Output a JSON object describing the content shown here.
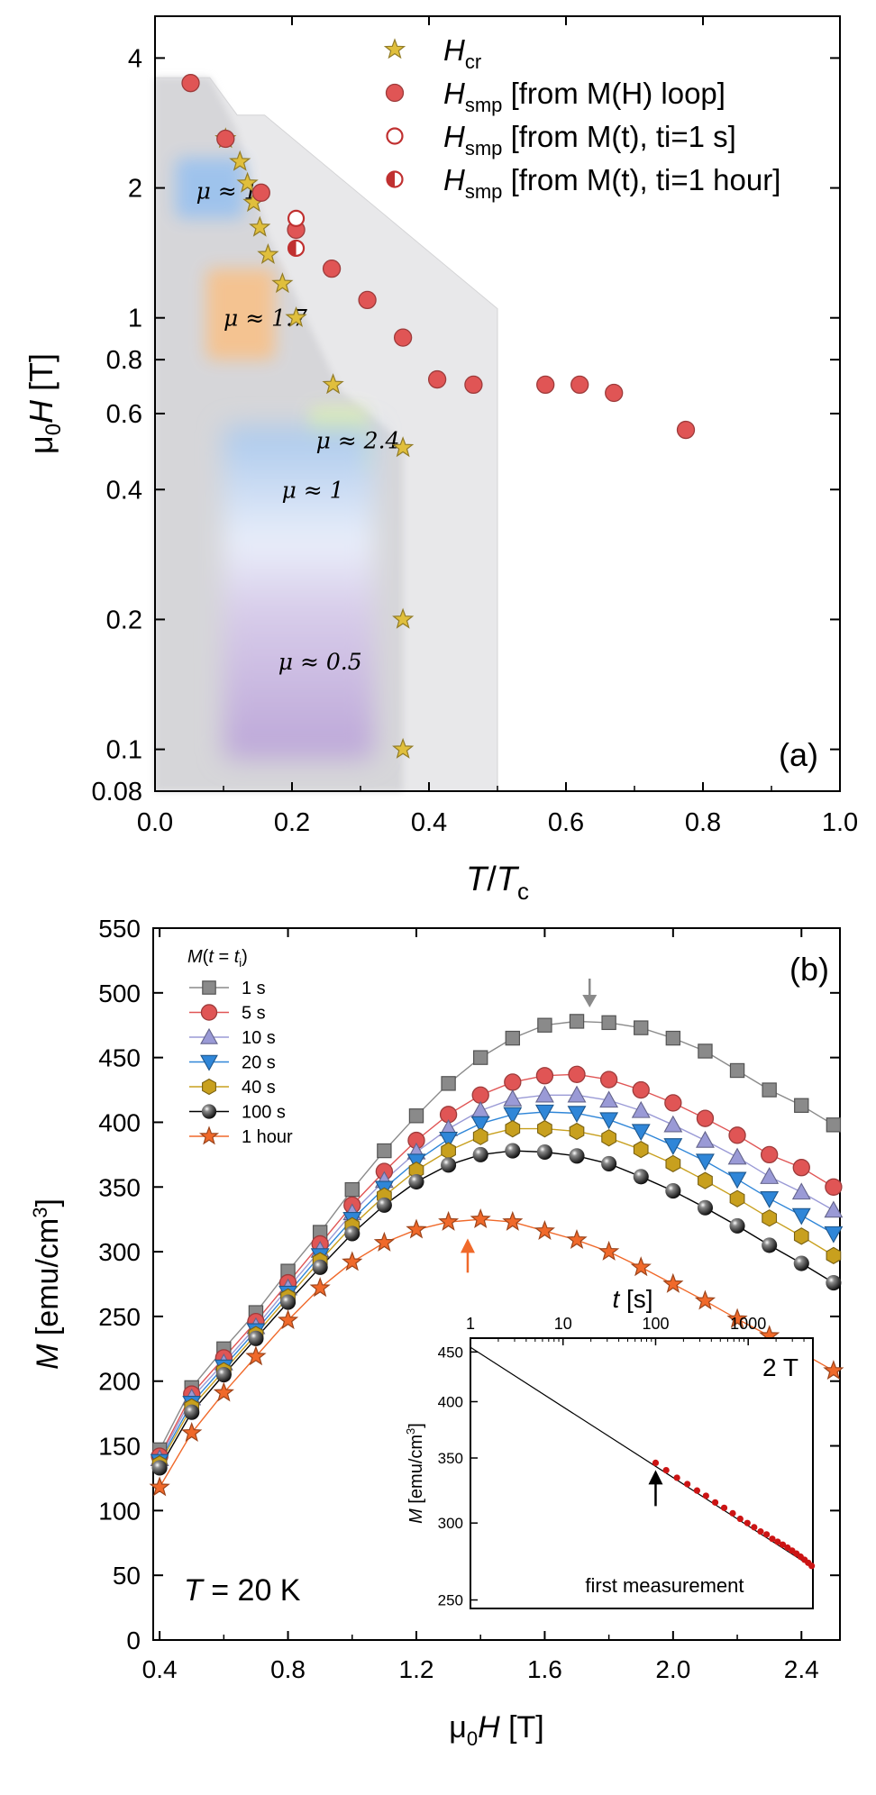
{
  "chart_data": [
    {
      "type": "scatter",
      "panel_label": "(a)",
      "xscale": "linear",
      "yscale": "log",
      "xlim": [
        0.0,
        1.0
      ],
      "ylim": [
        0.08,
        5.0
      ],
      "xticks": [
        0.0,
        0.2,
        0.4,
        0.6,
        0.8,
        1.0
      ],
      "xtick_labels": [
        "0.0",
        "0.2",
        "0.4",
        "0.6",
        "0.8",
        "1.0"
      ],
      "yticks": [
        0.08,
        0.1,
        0.2,
        0.4,
        0.6,
        0.8,
        1,
        2,
        4
      ],
      "ytick_labels": [
        "0.08",
        "0.1",
        "0.2",
        "0.4",
        "0.6",
        "0.8",
        "1",
        "2",
        "4"
      ],
      "xlabel": "T/Tc",
      "ylabel": "μ0H [T]",
      "legend": [
        {
          "label": "Hcr",
          "main": "H",
          "sub": "cr",
          "rest": "",
          "marker": "star",
          "color": "#e0bf3c"
        },
        {
          "label": "Hsmp [from M(H) loop]",
          "main": "H",
          "sub": "smp",
          "rest": " [from M(H) loop]",
          "marker": "circle",
          "color": "#e05555"
        },
        {
          "label": "Hsmp [from M(t), ti=1 s]",
          "main": "H",
          "sub": "smp",
          "rest": " [from M(t), ti=1 s]",
          "marker": "circle-open",
          "color": "#c03030"
        },
        {
          "label": "Hsmp [from M(t), ti=1 hour]",
          "main": "H",
          "sub": "smp",
          "rest": " [from M(t), ti=1 hour]",
          "marker": "circle-half",
          "color": "#c03030"
        }
      ],
      "series": [
        {
          "name": "Hcr",
          "marker": "star",
          "color": "#e0bf3c",
          "x": [
            0.103,
            0.124,
            0.135,
            0.144,
            0.153,
            0.165,
            0.186,
            0.206,
            0.26,
            0.362,
            0.362,
            0.362
          ],
          "y": [
            2.6,
            2.3,
            2.05,
            1.85,
            1.62,
            1.4,
            1.2,
            1.0,
            0.7,
            0.5,
            0.2,
            0.1
          ]
        },
        {
          "name": "Hsmp [from M(H) loop]",
          "marker": "circle",
          "color": "#e05555",
          "x": [
            0.052,
            0.103,
            0.155,
            0.206,
            0.258,
            0.31,
            0.362,
            0.412,
            0.465,
            0.57,
            0.62,
            0.67,
            0.775
          ],
          "y": [
            3.5,
            2.6,
            1.95,
            1.6,
            1.3,
            1.1,
            0.9,
            0.72,
            0.7,
            0.7,
            0.7,
            0.67,
            0.55
          ]
        },
        {
          "name": "Hsmp [from M(t), ti=1 s]",
          "marker": "circle-open",
          "color": "#c03030",
          "x": [
            0.206
          ],
          "y": [
            1.7
          ]
        },
        {
          "name": "Hsmp [from M(t), ti=1 hour]",
          "marker": "circle-half",
          "color": "#c03030",
          "x": [
            0.206
          ],
          "y": [
            1.45
          ]
        }
      ],
      "regions": [
        {
          "label": "μ ≈ 1",
          "color": "#9cc2ee",
          "x": 0.06,
          "y": 1.97
        },
        {
          "label": "μ ≈ 1.7",
          "color": "#f6c28e",
          "x": 0.1,
          "y": 1.0
        },
        {
          "label": "μ ≈ 2.4",
          "color": "#dfefb3",
          "x": 0.235,
          "y": 0.52
        },
        {
          "label": "μ ≈ 1",
          "color": "#a9c8ec",
          "x": 0.185,
          "y": 0.4
        },
        {
          "label": "μ ≈ 0.5",
          "color": "#c2b0dc",
          "x": 0.18,
          "y": 0.16
        }
      ]
    },
    {
      "type": "line",
      "panel_label": "(b)",
      "annotation": "T = 20 K",
      "xlim": [
        0.38,
        2.52
      ],
      "ylim": [
        0,
        550
      ],
      "xticks": [
        0.4,
        0.8,
        1.2,
        1.6,
        2.0,
        2.4
      ],
      "xtick_labels": [
        "0.4",
        "0.8",
        "1.2",
        "1.6",
        "2.0",
        "2.4"
      ],
      "yticks": [
        0,
        50,
        100,
        150,
        200,
        250,
        300,
        350,
        400,
        450,
        500,
        550
      ],
      "ytick_labels": [
        "0",
        "50",
        "100",
        "150",
        "200",
        "250",
        "300",
        "350",
        "400",
        "450",
        "500",
        "550"
      ],
      "xlabel": "μ0H [T]",
      "ylabel": "M [emu/cm3]",
      "legend_title": "M(t = ti)",
      "x": [
        0.4,
        0.5,
        0.6,
        0.7,
        0.8,
        0.9,
        1.0,
        1.1,
        1.2,
        1.3,
        1.4,
        1.5,
        1.6,
        1.7,
        1.8,
        1.9,
        2.0,
        2.1,
        2.2,
        2.3,
        2.4,
        2.5
      ],
      "series": [
        {
          "name": "1 s",
          "marker": "square",
          "color": "#8a8a8a",
          "values": [
            147,
            195,
            225,
            253,
            285,
            315,
            348,
            378,
            405,
            430,
            450,
            465,
            475,
            478,
            477,
            473,
            465,
            455,
            440,
            425,
            413,
            398
          ]
        },
        {
          "name": "5 s",
          "marker": "circle",
          "color": "#e05555",
          "values": [
            142,
            190,
            218,
            246,
            276,
            306,
            336,
            362,
            386,
            406,
            421,
            431,
            436,
            437,
            433,
            425,
            415,
            403,
            390,
            375,
            365,
            350
          ]
        },
        {
          "name": "10 s",
          "marker": "triangle-up",
          "color": "#9a9ad6",
          "values": [
            140,
            187,
            214,
            242,
            272,
            301,
            330,
            355,
            377,
            395,
            409,
            418,
            421,
            421,
            417,
            409,
            398,
            386,
            373,
            358,
            346,
            332
          ]
        },
        {
          "name": "20 s",
          "marker": "triangle-down",
          "color": "#2f86d8",
          "values": [
            138,
            183,
            211,
            239,
            268,
            297,
            325,
            349,
            370,
            387,
            399,
            406,
            408,
            407,
            402,
            393,
            382,
            370,
            356,
            341,
            328,
            314
          ]
        },
        {
          "name": "40 s",
          "marker": "hexagon",
          "color": "#c8a01e",
          "values": [
            136,
            180,
            208,
            236,
            265,
            293,
            320,
            343,
            363,
            378,
            389,
            395,
            395,
            393,
            388,
            379,
            368,
            355,
            341,
            326,
            312,
            297
          ]
        },
        {
          "name": "100 s",
          "marker": "sphere",
          "color": "#111111",
          "values": [
            133,
            176,
            205,
            233,
            261,
            288,
            314,
            336,
            354,
            367,
            375,
            378,
            377,
            374,
            368,
            358,
            347,
            334,
            320,
            305,
            291,
            276
          ]
        },
        {
          "name": "1 hour",
          "marker": "star",
          "color": "#f0692a",
          "values": [
            118,
            160,
            191,
            219,
            247,
            272,
            292,
            307,
            317,
            323,
            325,
            323,
            316,
            309,
            300,
            288,
            275,
            262,
            248,
            235,
            222,
            208
          ]
        }
      ],
      "arrows": [
        {
          "series": "1 s",
          "x": 1.74,
          "direction": "down",
          "color": "#8a8a8a"
        },
        {
          "series": "1 hour",
          "x": 1.36,
          "direction": "up",
          "color": "#f0692a"
        }
      ],
      "inset": {
        "type": "line",
        "title": "2 T",
        "xscale": "log",
        "yscale": "log",
        "xlim": [
          1,
          5000
        ],
        "ylim": [
          245,
          465
        ],
        "xticks": [
          1,
          10,
          100,
          1000
        ],
        "xtick_labels": [
          "1",
          "10",
          "100",
          "1000"
        ],
        "yticks": [
          250,
          300,
          350,
          400,
          450
        ],
        "ytick_labels": [
          "250",
          "300",
          "350",
          "400",
          "450"
        ],
        "xlabel": "t [s]",
        "ylabel": "M [emu/cm3]",
        "fit_line": {
          "x": [
            1,
            5000
          ],
          "y": [
            455,
            270
          ]
        },
        "first_measurement_x": 100,
        "annotation": "first measurement",
        "points": {
          "x": [
            100,
            130,
            170,
            220,
            280,
            350,
            440,
            550,
            680,
            820,
            980,
            1160,
            1360,
            1580,
            1820,
            2080,
            2360,
            2660,
            2980,
            3320,
            3680,
            4060,
            4450,
            4850
          ],
          "y": [
            346,
            340,
            334,
            329,
            324,
            320,
            315,
            311,
            307,
            303,
            300,
            297,
            294,
            292,
            289,
            287,
            285,
            283,
            281,
            279,
            277,
            275,
            273,
            271
          ]
        }
      }
    }
  ]
}
